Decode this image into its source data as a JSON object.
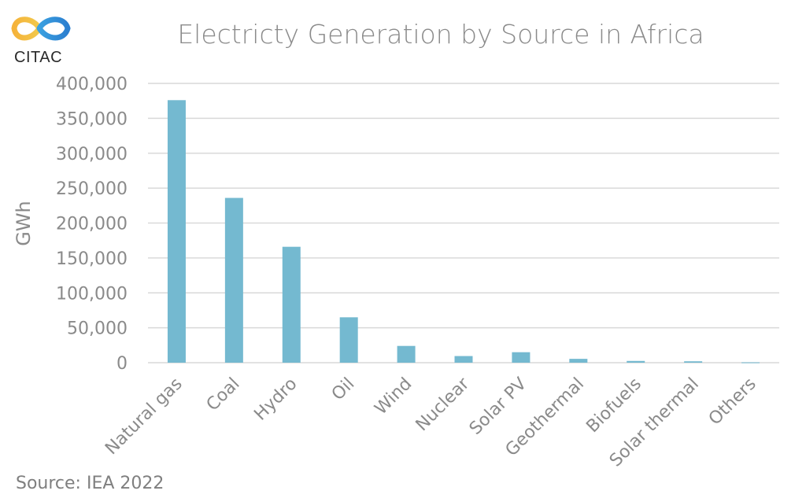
{
  "logo": {
    "text": "CITAC"
  },
  "footer": {
    "source": "Source: IEA 2022"
  },
  "colors": {
    "bar": "#74b9d0",
    "grid": "#d9d9d9",
    "text": "#8a8a8a"
  },
  "chart_data": {
    "type": "bar",
    "title": "Electricty Generation by Source in Africa",
    "xlabel": "",
    "ylabel": "GWh",
    "ylim": [
      0,
      400000
    ],
    "yticks": [
      0,
      50000,
      100000,
      150000,
      200000,
      250000,
      300000,
      350000,
      400000
    ],
    "ytick_labels": [
      "0",
      "50,000",
      "100,000",
      "150,000",
      "200,000",
      "250,000",
      "300,000",
      "350,000",
      "400,000"
    ],
    "categories": [
      "Natural gas",
      "Coal",
      "Hydro",
      "Oil",
      "Wind",
      "Nuclear",
      "Solar PV",
      "Geothermal",
      "Biofuels",
      "Solar thermal",
      "Others"
    ],
    "values": [
      376000,
      236000,
      166000,
      65000,
      24000,
      9500,
      15000,
      5500,
      2500,
      2000,
      500
    ],
    "grid": true,
    "legend": "none"
  }
}
